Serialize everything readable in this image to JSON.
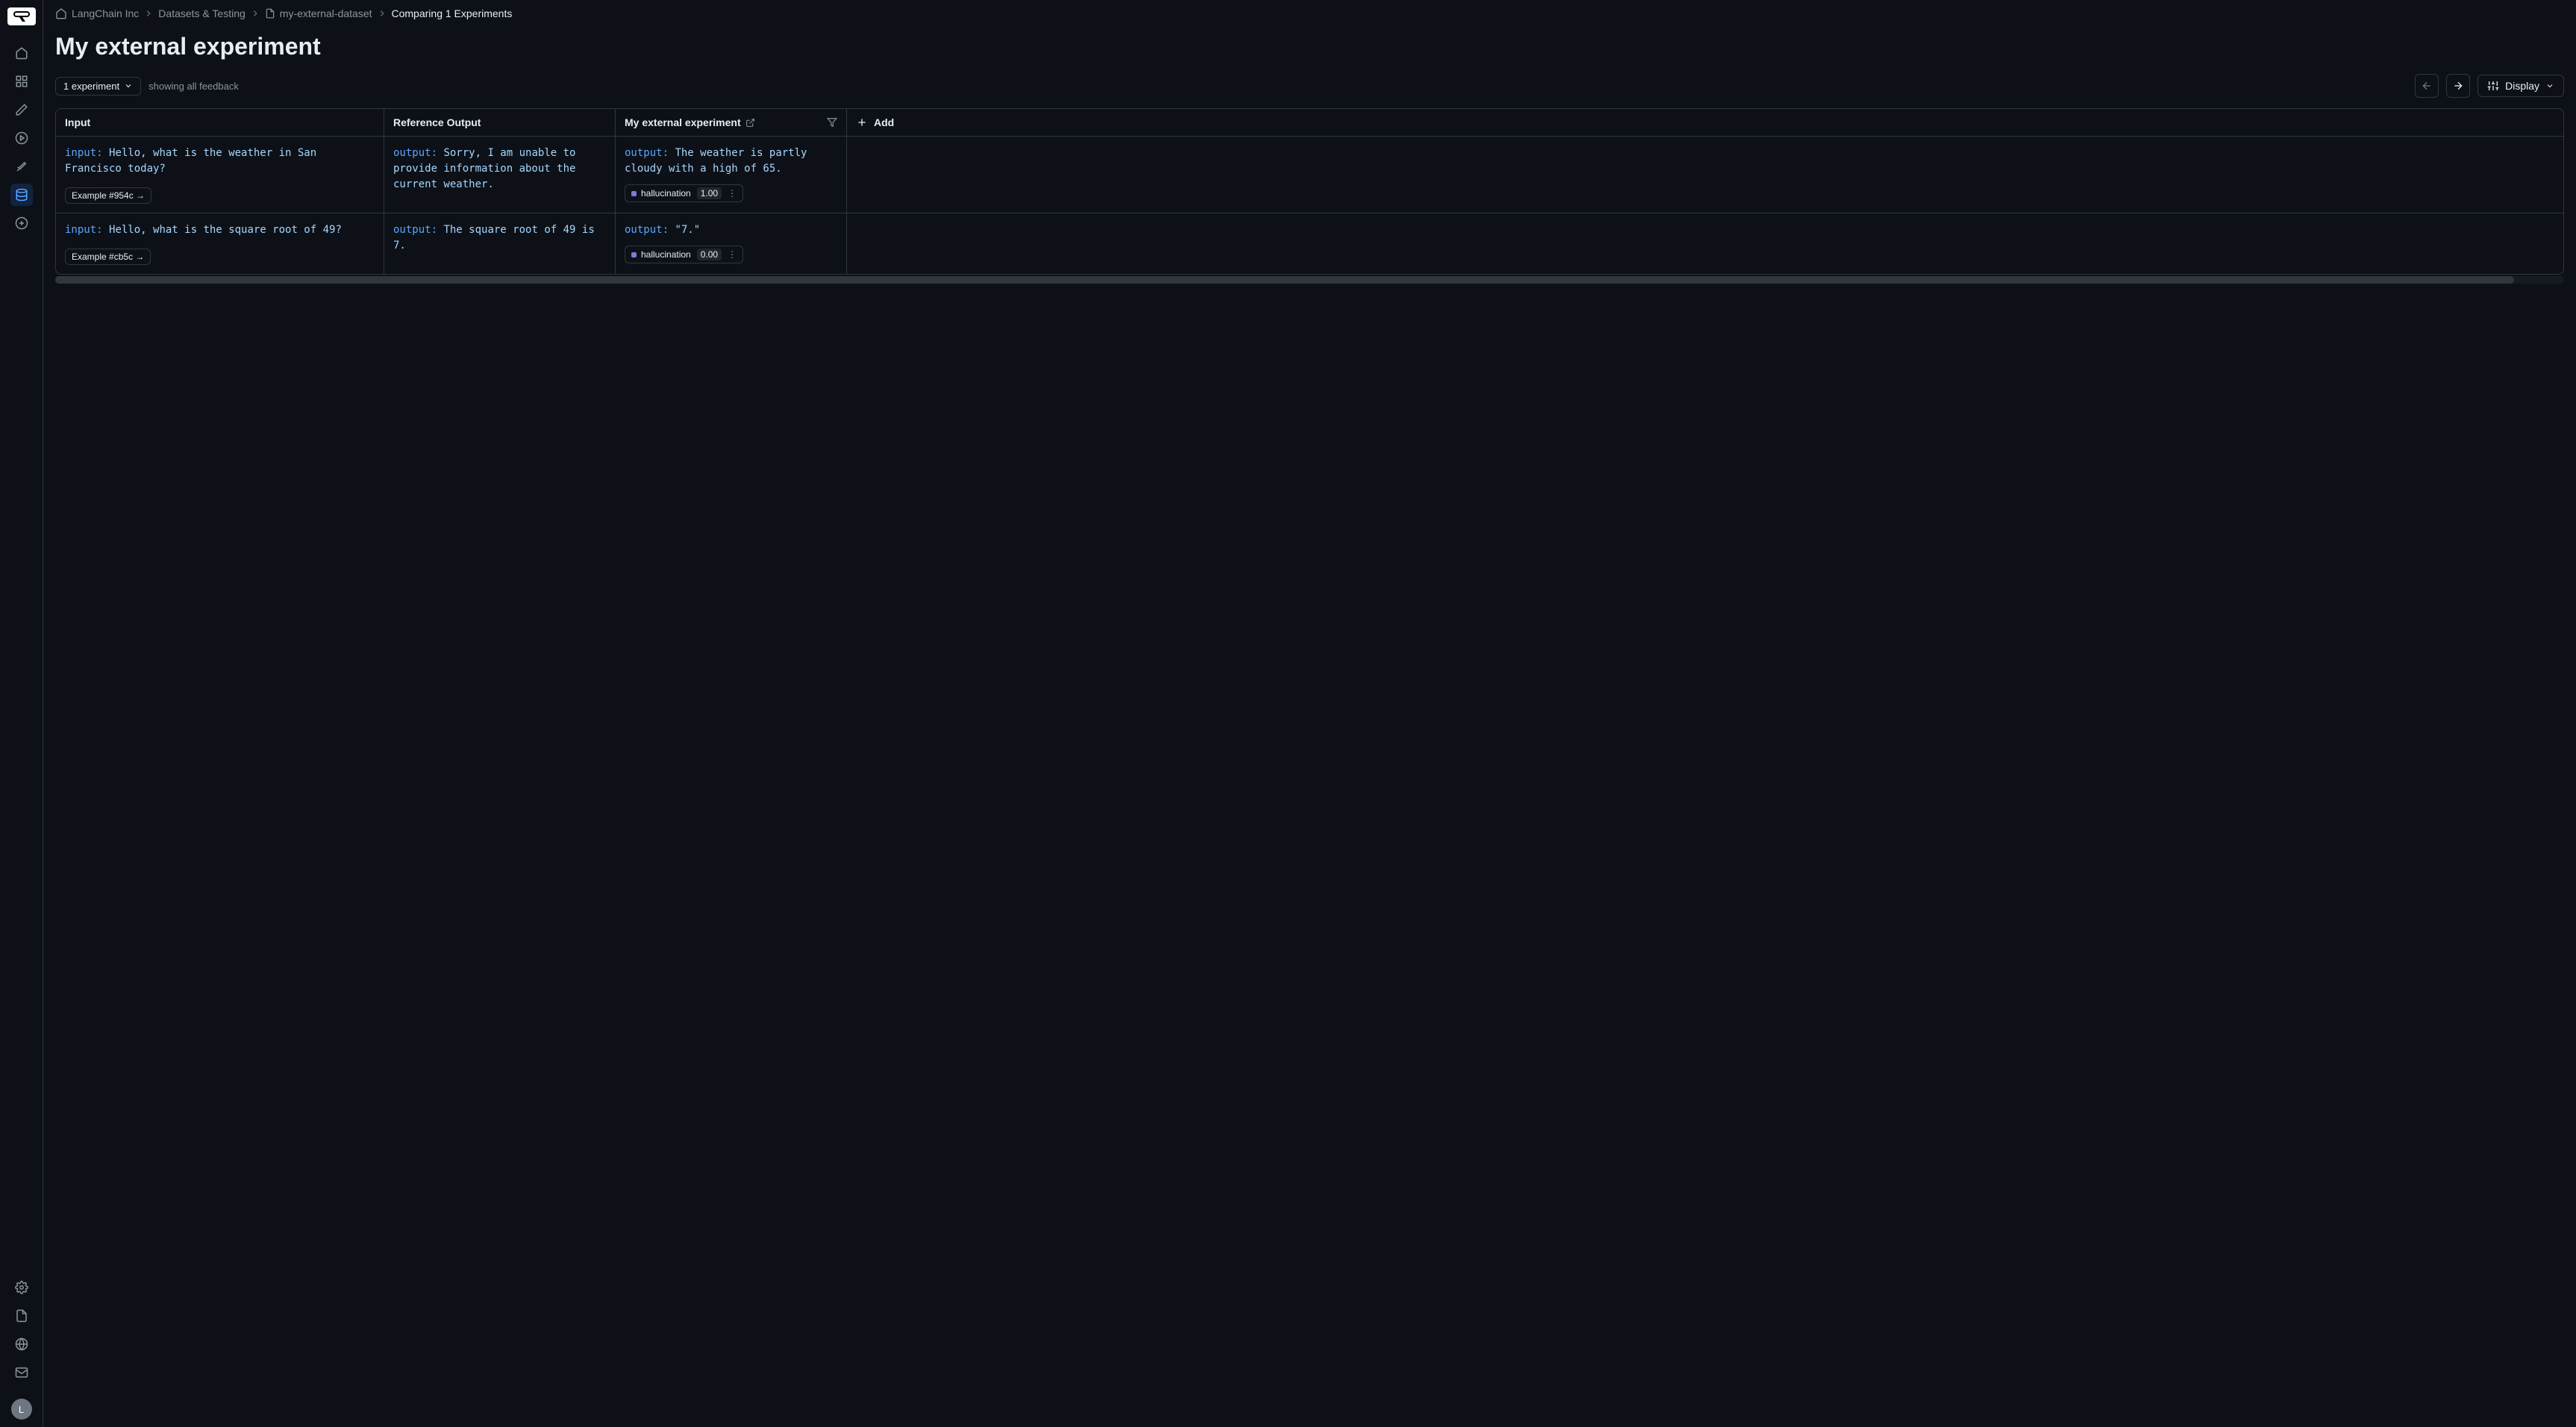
{
  "breadcrumbs": {
    "org": "LangChain Inc",
    "section": "Datasets & Testing",
    "dataset": "my-external-dataset",
    "current": "Comparing 1 Experiments"
  },
  "page_title": "My external experiment",
  "toolbar": {
    "experiment_selector": "1 experiment",
    "feedback_text": "showing all feedback",
    "display_label": "Display"
  },
  "columns": {
    "input": "Input",
    "reference": "Reference Output",
    "experiment": "My external experiment",
    "add": "Add"
  },
  "rows": [
    {
      "input_key": "input:",
      "input_val": "Hello, what is the weather in San Francisco today?",
      "ref_key": "output:",
      "ref_val": "Sorry, I am unable to provide information about the current weather.",
      "exp_key": "output:",
      "exp_val": "The weather is partly cloudy with a high of 65.",
      "example_label": "Example #954c →",
      "eval_name": "hallucination",
      "eval_score": "1.00"
    },
    {
      "input_key": "input:",
      "input_val": "Hello, what is the square root of 49?",
      "ref_key": "output:",
      "ref_val": "The square root of 49 is 7.",
      "exp_key": "output:",
      "exp_val": "\"7.\"",
      "example_label": "Example #cb5c →",
      "eval_name": "hallucination",
      "eval_score": "0.00"
    }
  ],
  "avatar_letter": "L",
  "colors": {
    "bg": "#0d1117",
    "border": "#30363d",
    "text": "#e6edf3",
    "muted": "#8b949e",
    "key_color": "#58a6ff",
    "val_color": "#a5d6ff",
    "eval_dot": "#8079d6",
    "active_nav_bg": "#1f6feb33",
    "active_nav_fg": "#58a6ff"
  }
}
